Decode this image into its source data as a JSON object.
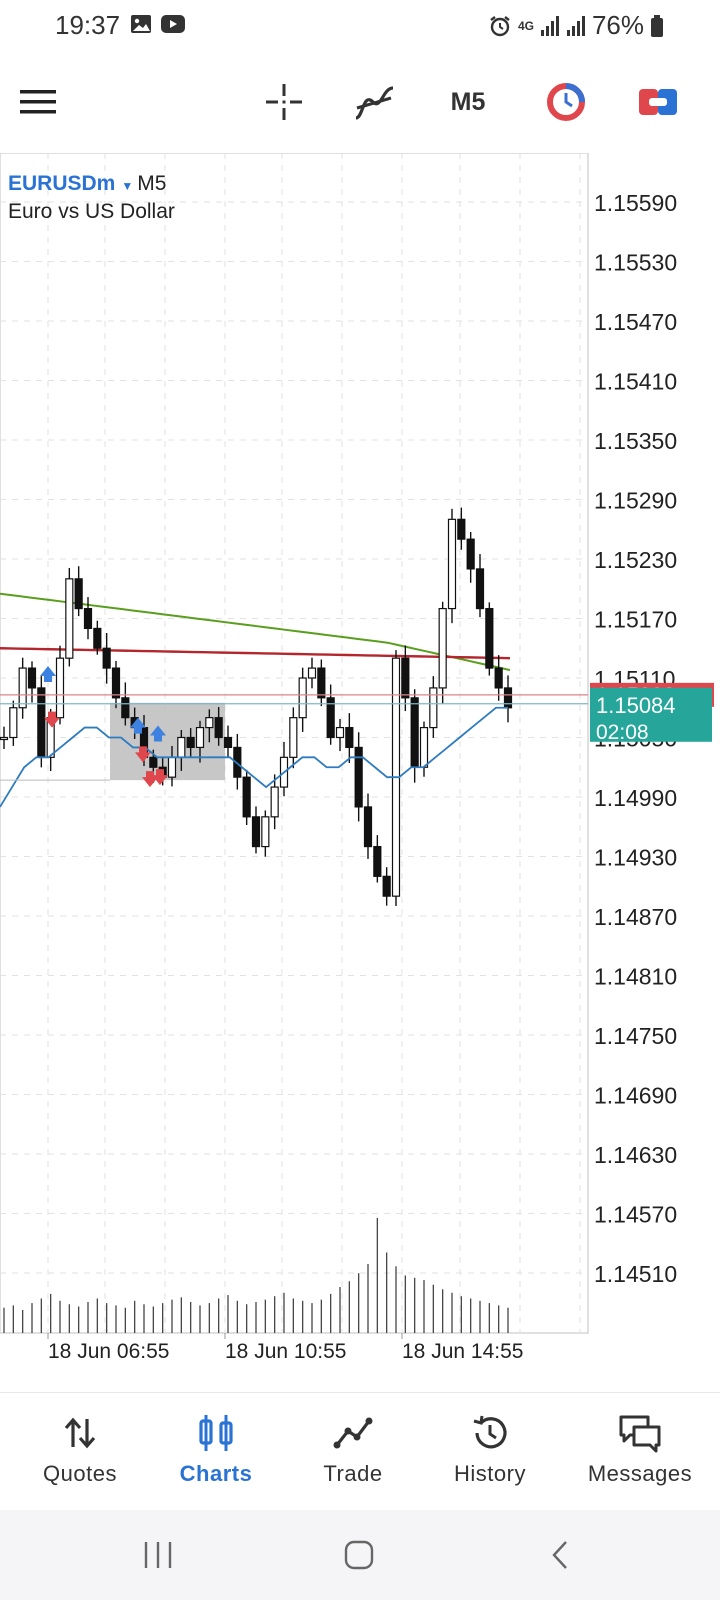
{
  "status_bar": {
    "time": "19:37",
    "battery": "76%",
    "network": "4G"
  },
  "toolbar": {
    "timeframe": "M5"
  },
  "symbol": {
    "name": "EURUSDm",
    "timeframe": "M5",
    "description": "Euro vs US Dollar"
  },
  "chart_data": {
    "type": "candlestick",
    "symbol": "EURUSDm",
    "timeframe": "M5",
    "price_ticks": [
      "1.15590",
      "1.15530",
      "1.15470",
      "1.15410",
      "1.15350",
      "1.15290",
      "1.15230",
      "1.15170",
      "1.15110",
      "1.15050",
      "1.14990",
      "1.14930",
      "1.14870",
      "1.14810",
      "1.14750",
      "1.14690",
      "1.14630",
      "1.14570",
      "1.14510"
    ],
    "time_labels": [
      "18 Jun 06:55",
      "18 Jun 10:55",
      "18 Jun 14:55"
    ],
    "ylim": [
      1.1448,
      1.1562
    ],
    "bid_price": "1.15084",
    "bar_timer": "02:08",
    "ask_price_partial": "1.15093",
    "ask_price": 1.15093,
    "ma_long_level": 1.15135,
    "ma_mid_level": 1.15125,
    "price_series": [
      1.1505,
      1.1508,
      1.1512,
      1.151,
      1.1503,
      1.1507,
      1.1513,
      1.1521,
      1.1518,
      1.1516,
      1.1514,
      1.1512,
      1.1509,
      1.1507,
      1.1506,
      1.1503,
      1.1502,
      1.1501,
      1.1503,
      1.1505,
      1.1504,
      1.1506,
      1.1507,
      1.1505,
      1.1504,
      1.1501,
      1.1497,
      1.1494,
      1.1497,
      1.15,
      1.1503,
      1.1507,
      1.1511,
      1.1512,
      1.1509,
      1.1505,
      1.1506,
      1.1504,
      1.1498,
      1.1494,
      1.1491,
      1.1489,
      1.1513,
      1.1509,
      1.1502,
      1.1506,
      1.151,
      1.1518,
      1.1527,
      1.1525,
      1.1522,
      1.1518,
      1.1512,
      1.151,
      1.1508
    ],
    "volume_series": [
      22,
      24,
      20,
      26,
      30,
      34,
      28,
      25,
      23,
      27,
      30,
      26,
      24,
      22,
      28,
      25,
      23,
      26,
      29,
      31,
      27,
      24,
      26,
      30,
      33,
      28,
      25,
      27,
      29,
      32,
      35,
      30,
      28,
      26,
      29,
      34,
      40,
      45,
      52,
      60,
      100,
      70,
      58,
      50,
      48,
      46,
      42,
      38,
      35,
      32,
      30,
      28,
      26,
      24,
      22
    ],
    "ma_fast_series": [
      1.1498,
      1.15,
      1.1502,
      1.1503,
      1.1503,
      1.1504,
      1.1505,
      1.1506,
      1.1506,
      1.1505,
      1.1505,
      1.1504,
      1.1504,
      1.1503,
      1.1503,
      1.1503,
      1.1503,
      1.1503,
      1.1503,
      1.1503,
      1.1502,
      1.1501,
      1.15,
      1.1501,
      1.1502,
      1.1503,
      1.1503,
      1.1502,
      1.1502,
      1.1503,
      1.1503,
      1.1502,
      1.1501,
      1.1501,
      1.1502,
      1.1502,
      1.1503,
      1.1504,
      1.1505,
      1.1506,
      1.1507,
      1.1508,
      1.1508
    ]
  },
  "bottom_nav": [
    {
      "label": "Quotes",
      "icon": "quotes-icon",
      "active": false
    },
    {
      "label": "Charts",
      "icon": "charts-icon",
      "active": true
    },
    {
      "label": "Trade",
      "icon": "trade-icon",
      "active": false
    },
    {
      "label": "History",
      "icon": "history-icon",
      "active": false
    },
    {
      "label": "Messages",
      "icon": "messages-icon",
      "active": false
    }
  ],
  "colors": {
    "accent": "#2a73d4",
    "bid_label": "#26a69a",
    "ask_label": "#e0474c",
    "ma_green": "#5a9e1e",
    "ma_red": "#b3262d",
    "ma_blue": "#2f7bbf"
  }
}
